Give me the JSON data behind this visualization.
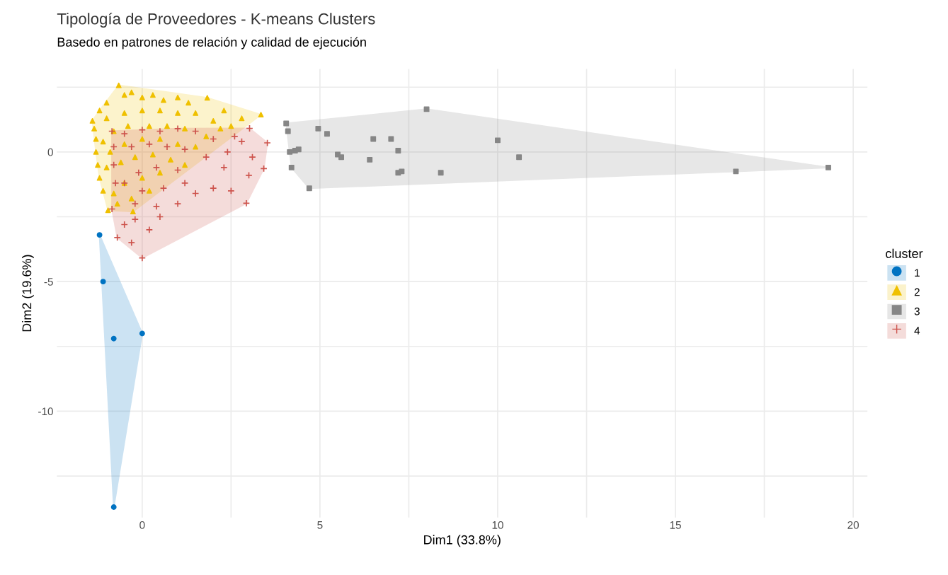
{
  "chart_data": {
    "type": "scatter",
    "title": "Tipología de Proveedores - K-means Clusters",
    "subtitle": "Basedo en patrones de relación y calidad de ejecución",
    "xlabel": "Dim1 (33.8%)",
    "ylabel": "Dim2 (19.6%)",
    "legend_title": "cluster",
    "legend": "right",
    "grid": true,
    "xlim": [
      -2.4,
      20.4
    ],
    "ylim": [
      -14.1,
      3.2
    ],
    "xticks": [
      0,
      {
        "value": 2.5,
        "label": null
      },
      5,
      {
        "value": 7.5,
        "label": null
      },
      10,
      {
        "value": 12.5,
        "label": null
      },
      15,
      {
        "value": 17.5,
        "label": null
      },
      20
    ],
    "yticks": [
      {
        "value": -12.5,
        "label": null
      },
      -10,
      {
        "value": -7.5,
        "label": null
      },
      -5,
      {
        "value": -2.5,
        "label": null
      },
      0,
      {
        "value": 2.5,
        "label": null
      }
    ],
    "series": [
      {
        "name": "1",
        "color": "#0073c2",
        "marker": "circle",
        "x": [
          -1.2,
          -1.1,
          -0.8,
          0,
          -0.8
        ],
        "values": [
          -3.2,
          -5,
          -7.2,
          -7,
          -13.7
        ]
      },
      {
        "name": "2",
        "color": "#efc000",
        "marker": "triangle",
        "x": [
          -1.4,
          -1.35,
          -1.3,
          -1.3,
          -1.25,
          -1.2,
          -1.1,
          -0.96,
          -1.2,
          -1.0,
          -0.66,
          -0.5,
          -0.3,
          0,
          0.3,
          0.6,
          1.0,
          1.3,
          1.83,
          2.3,
          2.8,
          3.34,
          2.5,
          2.0,
          1.5,
          1.0,
          0.5,
          0,
          -0.5,
          -1.0,
          -0.8,
          -0.4,
          0.2,
          0.7,
          1.2,
          1.8,
          1.5,
          1.0,
          0.5,
          0,
          -0.5,
          -0.9,
          -0.6,
          -0.2,
          0.3,
          0.8,
          1.2,
          0.5,
          0,
          -0.5,
          -0.8,
          -0.3,
          -0.26,
          -0.7,
          0.2,
          2.2,
          -1.1,
          -1.0
        ],
        "values": [
          1.2,
          0.9,
          0.5,
          0,
          -0.5,
          -1.0,
          -1.5,
          -2.25,
          1.6,
          1.9,
          2.57,
          2.2,
          2.3,
          2.1,
          2.2,
          2.0,
          2.1,
          1.9,
          2.09,
          1.6,
          1.3,
          1.44,
          1.0,
          1.2,
          1.5,
          1.5,
          1.6,
          1.6,
          1.5,
          1.3,
          0.8,
          1.0,
          1.0,
          1.0,
          0.9,
          0.6,
          0.2,
          0.3,
          0.5,
          0.5,
          0.3,
          0,
          -0.4,
          -0.2,
          -0.1,
          -0.3,
          -0.5,
          -0.8,
          -1.0,
          -1.2,
          -1.6,
          -1.8,
          -2.3,
          -2.0,
          -1.5,
          0.9,
          0.4,
          -0.6
        ]
      },
      {
        "name": "3",
        "color": "#868686",
        "marker": "square",
        "x": [
          4.05,
          4.1,
          4.15,
          4.3,
          4.4,
          4.2,
          4.7,
          4.95,
          5.2,
          5.5,
          5.6,
          6.4,
          6.5,
          7.0,
          7.2,
          7.3,
          7.2,
          8.0,
          8.4,
          10.0,
          10.6,
          16.7,
          19.3
        ],
        "values": [
          1.1,
          0.8,
          0,
          0.05,
          0.1,
          -0.6,
          -1.4,
          0.9,
          0.7,
          -0.1,
          -0.2,
          -0.3,
          0.5,
          0.5,
          -0.8,
          -0.75,
          0.05,
          1.65,
          -0.8,
          0.45,
          -0.2,
          -0.75,
          -0.6
        ]
      },
      {
        "name": "4",
        "color": "#cd534c",
        "marker": "cross",
        "x": [
          -0.85,
          -0.8,
          -0.8,
          -0.75,
          -0.85,
          -0.7,
          -0.5,
          -0.2,
          0,
          -0.3,
          0.2,
          0.5,
          1.0,
          1.5,
          2.0,
          2.5,
          2.93,
          3.42,
          3.52,
          3.02,
          2.8,
          2.4,
          2.0,
          1.5,
          1.0,
          0.5,
          0,
          -0.5,
          -0.3,
          0.2,
          0.7,
          1.2,
          1.8,
          2.3,
          3.0,
          1.0,
          0.4,
          -0.1,
          -0.5,
          0,
          0.6,
          1.2,
          -0.2,
          0.4,
          3.1,
          2.6
        ],
        "values": [
          0.8,
          0.2,
          -0.5,
          -1.2,
          -2.2,
          -3.3,
          -2.8,
          -2.6,
          -4.09,
          -3.5,
          -3.0,
          -2.5,
          -2.0,
          -1.6,
          -1.4,
          -1.5,
          -1.98,
          -0.64,
          0.35,
          0.91,
          0.4,
          0,
          0.5,
          0.8,
          0.9,
          0.8,
          0.85,
          0.7,
          0.2,
          0.3,
          0.2,
          0.1,
          -0.2,
          -0.6,
          -0.9,
          -0.7,
          -0.6,
          -0.8,
          -1.2,
          -1.5,
          -1.4,
          -1.2,
          -2.0,
          -2.1,
          -0.2,
          0.6
        ]
      }
    ]
  }
}
